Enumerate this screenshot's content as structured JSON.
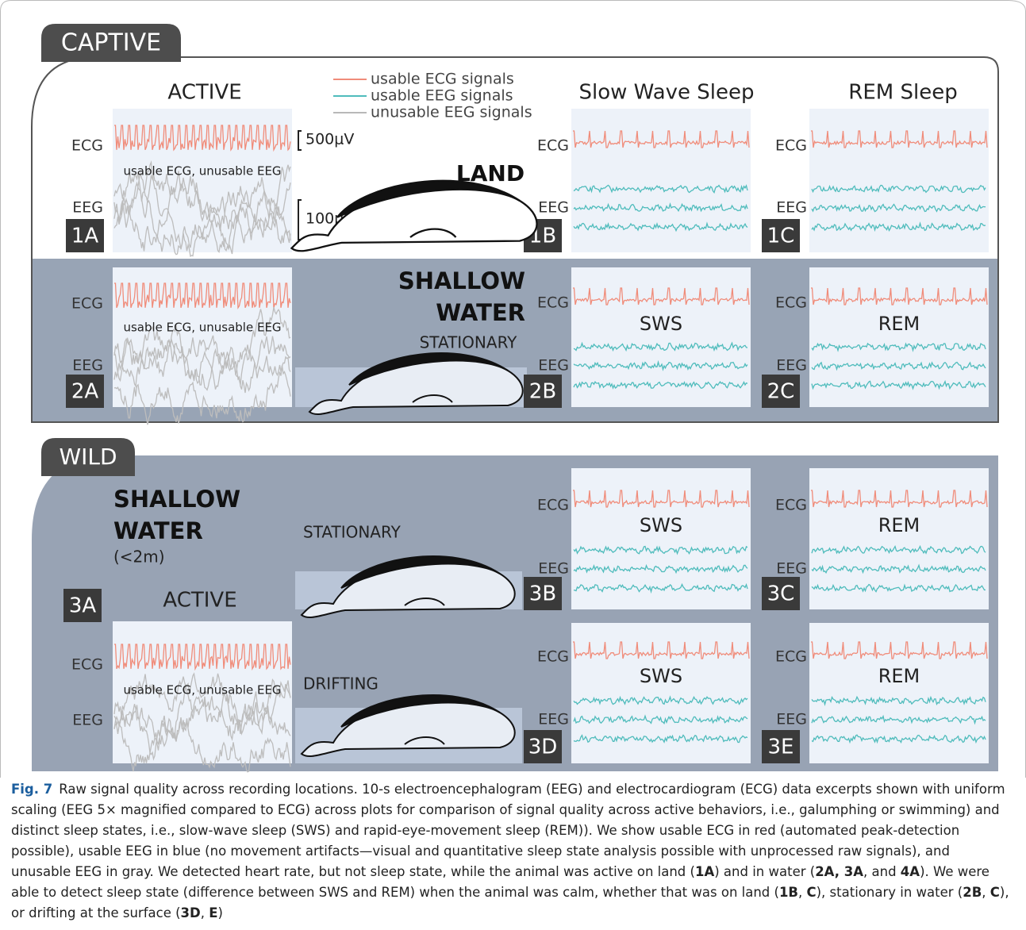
{
  "captive": {
    "tab": "CAPTIVE",
    "titles": [
      "ACTIVE",
      "Slow Wave Sleep",
      "REM Sleep"
    ],
    "legend": [
      "usable ECG signals",
      "usable EEG signals",
      "unusable EEG signals"
    ],
    "scale": [
      "500μV",
      "100μV"
    ],
    "land": "LAND",
    "shallow": "SHALLOW",
    "water": "WATER",
    "stationary": "STATIONARY"
  },
  "wild": {
    "tab": "WILD",
    "shallow": "SHALLOW",
    "water": "WATER",
    "depth": "(<2m)",
    "stationary": "STATIONARY",
    "active": "ACTIVE",
    "drifting": "DRIFTING"
  },
  "panels": [
    {
      "id": "1A",
      "ecg": "ECG",
      "eeg": "EEG",
      "note": "usable ECG, unusable EEG"
    },
    {
      "id": "1B",
      "ecg": "ECG",
      "eeg": "EEG"
    },
    {
      "id": "1C",
      "ecg": "ECG",
      "eeg": "EEG"
    },
    {
      "id": "2A",
      "ecg": "ECG",
      "eeg": "EEG",
      "note": "usable ECG, unusable EEG"
    },
    {
      "id": "2B",
      "ecg": "ECG",
      "eeg": "EEG",
      "note": "SWS"
    },
    {
      "id": "2C",
      "ecg": "ECG",
      "eeg": "EEG",
      "note": "REM"
    },
    {
      "id": "3A",
      "ecg": "ECG",
      "eeg": "EEG",
      "note": "usable ECG, unusable EEG"
    },
    {
      "id": "3B",
      "ecg": "ECG",
      "eeg": "EEG",
      "note": "SWS"
    },
    {
      "id": "3C",
      "ecg": "ECG",
      "eeg": "EEG",
      "note": "REM"
    },
    {
      "id": "3D",
      "ecg": "ECG",
      "eeg": "EEG",
      "note": "SWS"
    },
    {
      "id": "3E",
      "ecg": "ECG",
      "eeg": "EEG",
      "note": "REM"
    }
  ],
  "caption": {
    "label": "Fig. 7",
    "segments": [
      {
        "text": "Raw signal quality across recording locations. 10-s electroencephalogram (EEG) and electrocardiogram (ECG) data excerpts shown with uniform scaling (EEG 5× magnified compared to ECG) across plots for comparison of signal quality across active behaviors, i.e., galumphing or swimming) and distinct sleep states, i.e., slow-wave sleep (SWS) and rapid-eye-movement sleep (REM)). We show usable ECG in red (automated peak-detection possible), usable EEG in blue (no movement artifacts—visual and quantitative sleep state analysis possible with unprocessed raw signals), and unusable EEG in gray. We detected heart rate, but not sleep state, while the animal was active on land (",
        "bold": false
      },
      {
        "text": "1A",
        "bold": true
      },
      {
        "text": ") and in water (",
        "bold": false
      },
      {
        "text": "2A, 3A",
        "bold": true
      },
      {
        "text": ", and ",
        "bold": false
      },
      {
        "text": "4A",
        "bold": true
      },
      {
        "text": "). We were able to detect sleep state (difference between SWS and REM) when the animal was calm, whether that was on land (",
        "bold": false
      },
      {
        "text": "1B",
        "bold": true
      },
      {
        "text": ", ",
        "bold": false
      },
      {
        "text": "C",
        "bold": true
      },
      {
        "text": "), stationary in water (",
        "bold": false
      },
      {
        "text": "2B",
        "bold": true
      },
      {
        "text": ", ",
        "bold": false
      },
      {
        "text": "C",
        "bold": true
      },
      {
        "text": "), or drifting at the surface (",
        "bold": false
      },
      {
        "text": "3D",
        "bold": true
      },
      {
        "text": ", ",
        "bold": false
      },
      {
        "text": "E",
        "bold": true
      },
      {
        "text": ")",
        "bold": false
      }
    ]
  }
}
